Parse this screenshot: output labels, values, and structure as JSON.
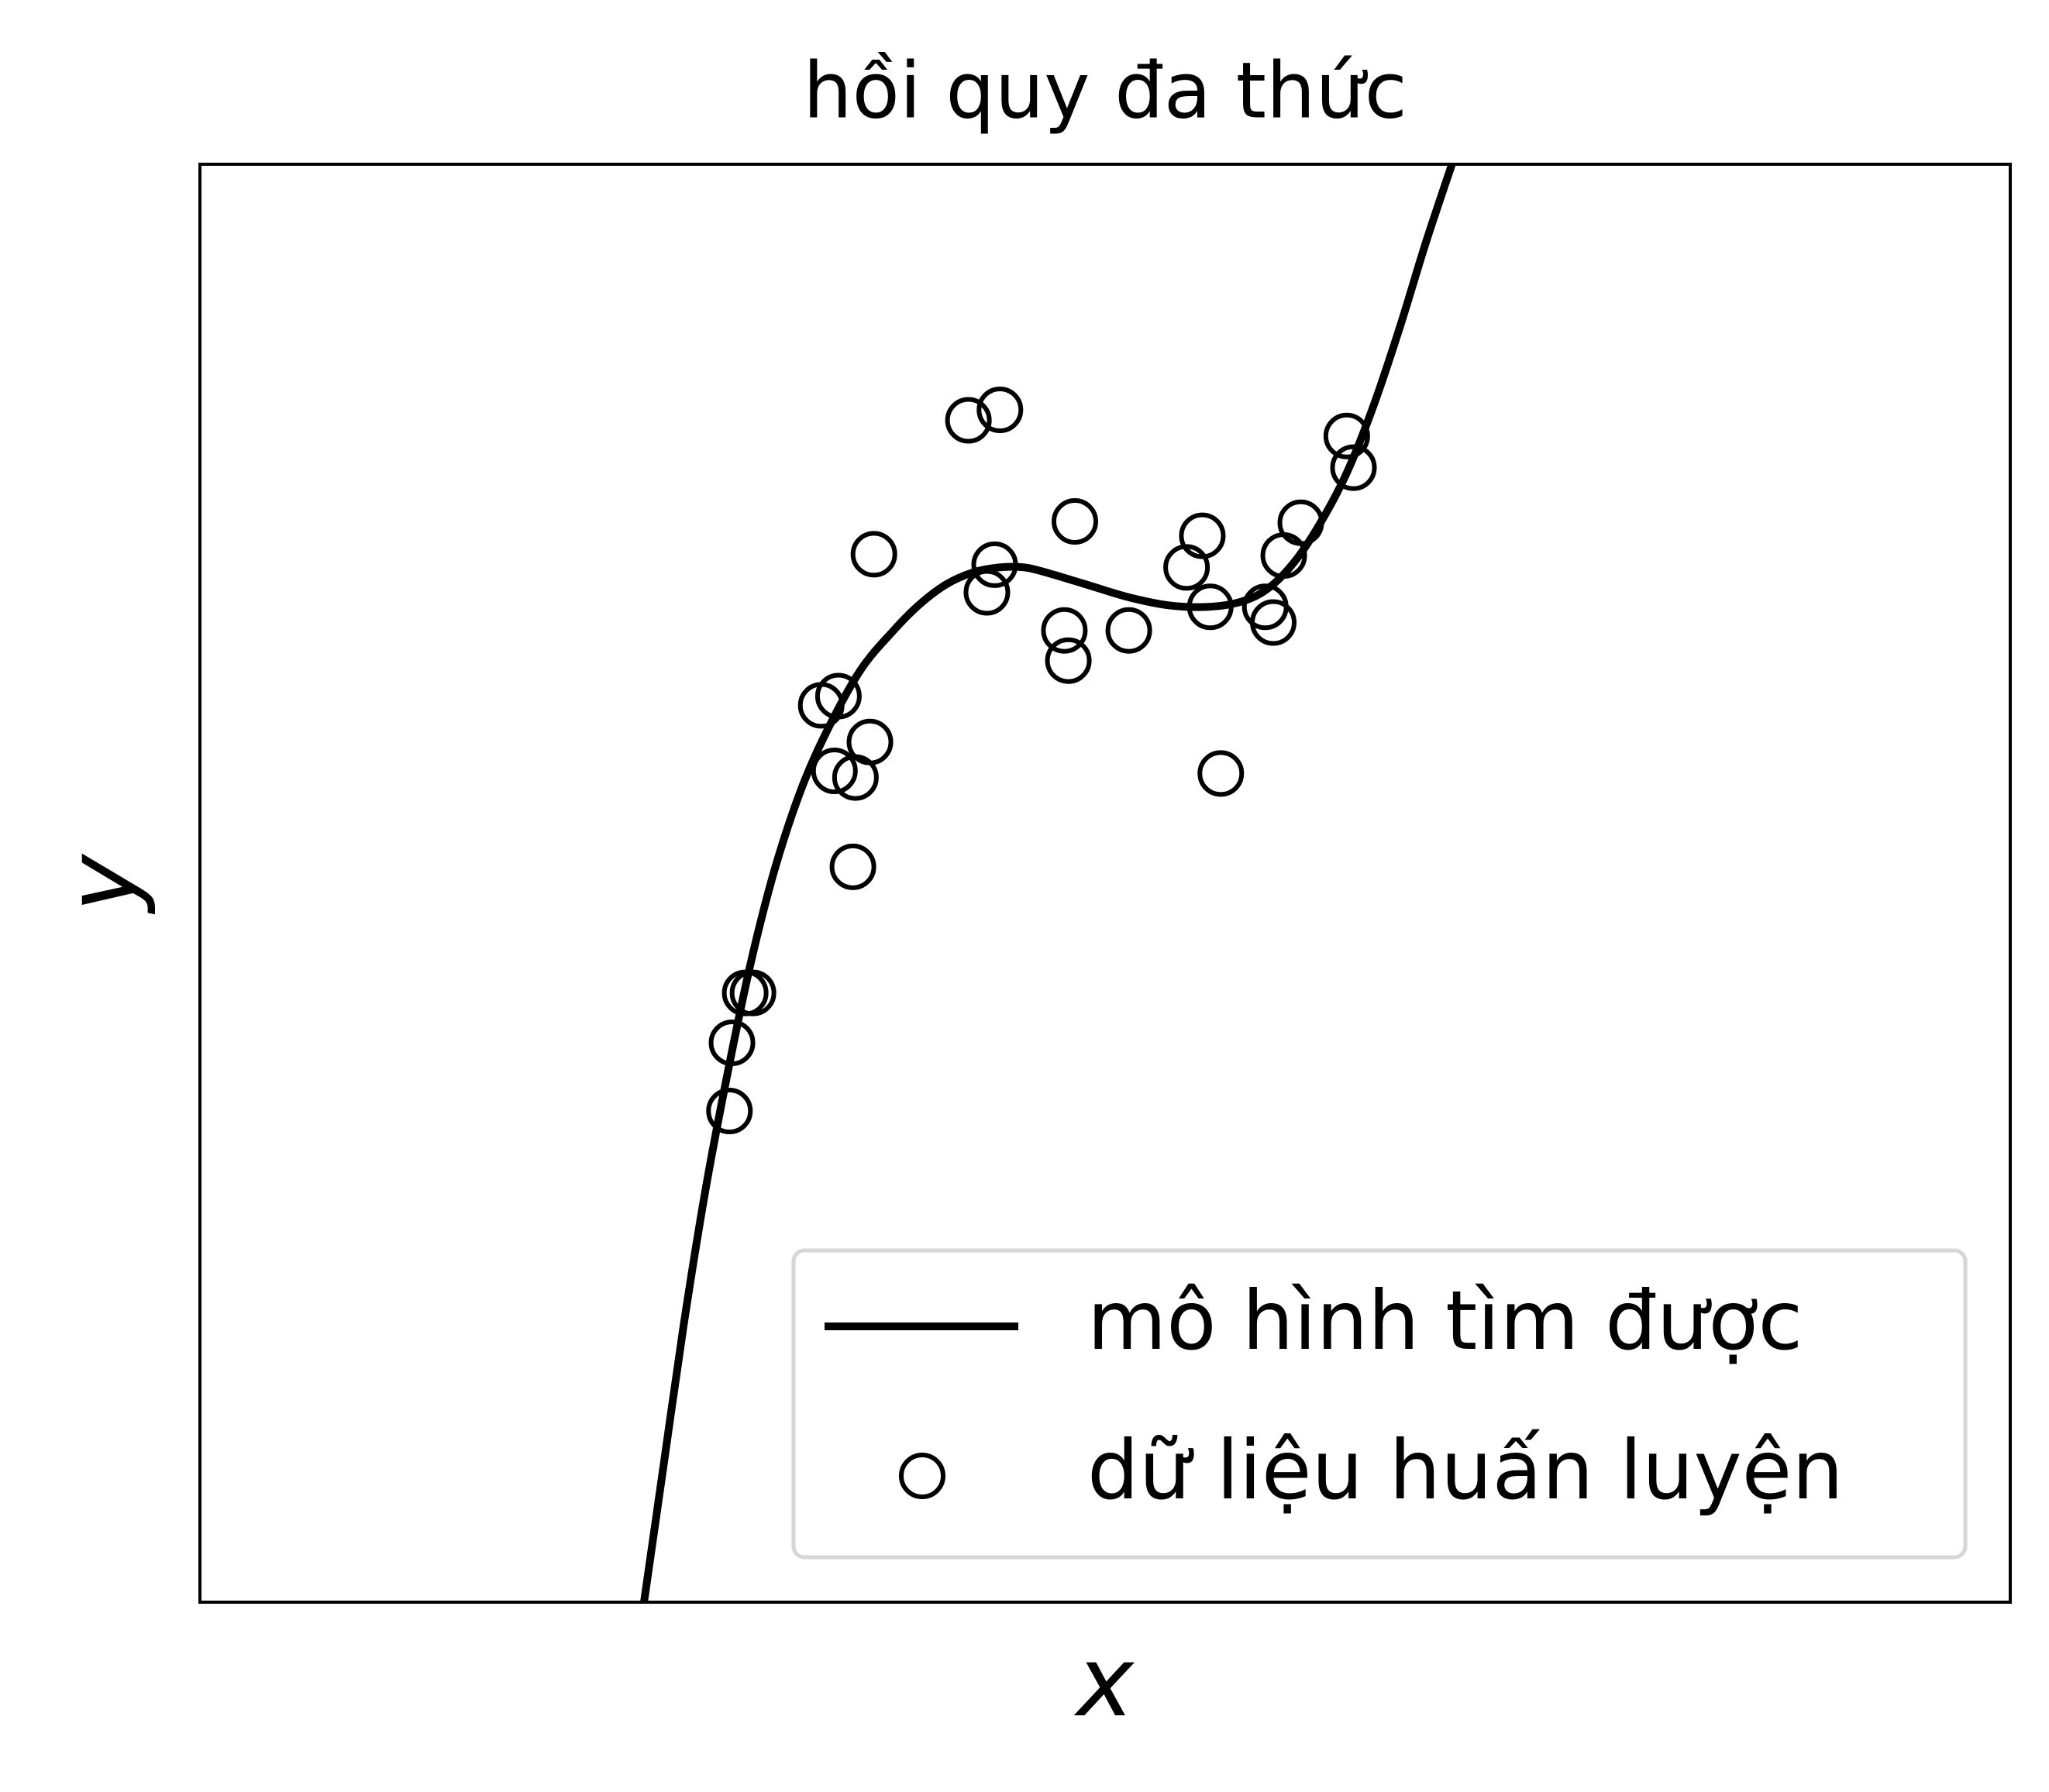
{
  "chart_data": {
    "type": "line",
    "title": "hồi quy đa thức",
    "x_label": "x",
    "y_label": "y",
    "xlim": [
      0,
      10
    ],
    "ylim": [
      0,
      10
    ],
    "xticks": [],
    "yticks": [],
    "grid": false,
    "legend": "lower right",
    "series": [
      {
        "name": "mô hình tìm được",
        "type": "line",
        "color": "#000000",
        "x": [
          2.453,
          2.562,
          2.671,
          2.794,
          2.925,
          3.048,
          3.179,
          3.324,
          3.469,
          3.65,
          3.832,
          3.977,
          4.122,
          4.267,
          4.412,
          4.557,
          4.702,
          4.92,
          5.138,
          5.355,
          5.573,
          5.755,
          5.9,
          6.045,
          6.19,
          6.335,
          6.48,
          6.626,
          6.771,
          6.916
        ],
        "values": [
          0,
          0.959,
          1.918,
          2.877,
          3.744,
          4.475,
          5.114,
          5.662,
          6.073,
          6.484,
          6.758,
          6.941,
          7.078,
          7.16,
          7.196,
          7.196,
          7.151,
          7.068,
          6.986,
          6.932,
          6.922,
          6.959,
          7.05,
          7.233,
          7.507,
          7.854,
          8.311,
          8.858,
          9.452,
          10.0
        ]
      },
      {
        "name": "dữ liệu huấn luyện",
        "type": "scatter",
        "color": "#000000",
        "x": [
          4.245,
          4.419,
          3.723,
          4.39,
          4.347,
          4.833,
          4.775,
          4.797,
          5.131,
          5.537,
          5.45,
          5.581,
          5.885,
          5.929,
          5.987,
          6.081,
          6.335,
          6.372,
          3.432,
          3.527,
          3.701,
          3.621,
          3.505,
          3.607,
          5.639,
          3.055,
          3.012,
          2.939,
          2.925
        ],
        "values": [
          8.219,
          8.292,
          7.288,
          7.215,
          7.023,
          7.516,
          6.758,
          6.548,
          6.758,
          7.416,
          7.196,
          6.922,
          6.922,
          6.813,
          7.279,
          7.507,
          8.11,
          7.89,
          6.237,
          6.301,
          5.982,
          5.735,
          5.781,
          5.114,
          5.763,
          4.237,
          4.237,
          3.89,
          3.416
        ]
      }
    ]
  }
}
